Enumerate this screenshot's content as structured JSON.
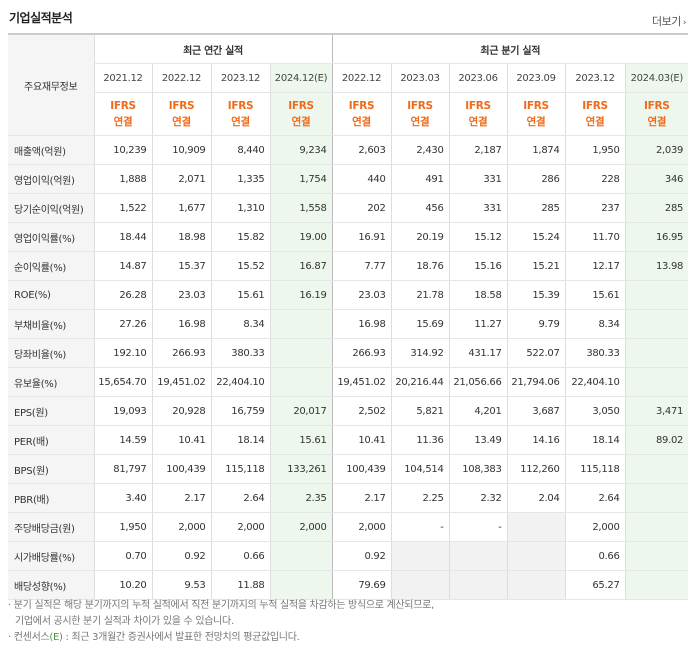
{
  "title": "기업실적분석",
  "more": "더보기",
  "stub_header": "주요재무정보",
  "annual_header": "최근 연간 실적",
  "quarter_header": "최근 분기 실적",
  "annual_periods": [
    "2021.12",
    "2022.12",
    "2023.12",
    "2024.12(E)"
  ],
  "quarter_periods": [
    "2022.12",
    "2023.03",
    "2023.06",
    "2023.09",
    "2023.12",
    "2024.03(E)"
  ],
  "ifrs": [
    "IFRS",
    "연결"
  ],
  "rows": [
    {
      "label": "매출액(억원)",
      "values": [
        "10,239",
        "10,909",
        "8,440",
        "9,234",
        "2,603",
        "2,430",
        "2,187",
        "1,874",
        "1,950",
        "2,039"
      ]
    },
    {
      "label": "영업이익(억원)",
      "values": [
        "1,888",
        "2,071",
        "1,335",
        "1,754",
        "440",
        "491",
        "331",
        "286",
        "228",
        "346"
      ]
    },
    {
      "label": "당기순이익(억원)",
      "values": [
        "1,522",
        "1,677",
        "1,310",
        "1,558",
        "202",
        "456",
        "331",
        "285",
        "237",
        "285"
      ]
    },
    {
      "label": "영업이익률(%)",
      "values": [
        "18.44",
        "18.98",
        "15.82",
        "19.00",
        "16.91",
        "20.19",
        "15.12",
        "15.24",
        "11.70",
        "16.95"
      ]
    },
    {
      "label": "순이익률(%)",
      "values": [
        "14.87",
        "15.37",
        "15.52",
        "16.87",
        "7.77",
        "18.76",
        "15.16",
        "15.21",
        "12.17",
        "13.98"
      ]
    },
    {
      "label": "ROE(%)",
      "values": [
        "26.28",
        "23.03",
        "15.61",
        "16.19",
        "23.03",
        "21.78",
        "18.58",
        "15.39",
        "15.61",
        ""
      ]
    },
    {
      "label": "부채비율(%)",
      "values": [
        "27.26",
        "16.98",
        "8.34",
        "",
        "16.98",
        "15.69",
        "11.27",
        "9.79",
        "8.34",
        ""
      ]
    },
    {
      "label": "당좌비율(%)",
      "values": [
        "192.10",
        "266.93",
        "380.33",
        "",
        "266.93",
        "314.92",
        "431.17",
        "522.07",
        "380.33",
        ""
      ]
    },
    {
      "label": "유보율(%)",
      "values": [
        "15,654.70",
        "19,451.02",
        "22,404.10",
        "",
        "19,451.02",
        "20,216.44",
        "21,056.66",
        "21,794.06",
        "22,404.10",
        ""
      ]
    },
    {
      "label": "EPS(원)",
      "values": [
        "19,093",
        "20,928",
        "16,759",
        "20,017",
        "2,502",
        "5,821",
        "4,201",
        "3,687",
        "3,050",
        "3,471"
      ]
    },
    {
      "label": "PER(배)",
      "values": [
        "14.59",
        "10.41",
        "18.14",
        "15.61",
        "10.41",
        "11.36",
        "13.49",
        "14.16",
        "18.14",
        "89.02"
      ]
    },
    {
      "label": "BPS(원)",
      "values": [
        "81,797",
        "100,439",
        "115,118",
        "133,261",
        "100,439",
        "104,514",
        "108,383",
        "112,260",
        "115,118",
        ""
      ]
    },
    {
      "label": "PBR(배)",
      "values": [
        "3.40",
        "2.17",
        "2.64",
        "2.35",
        "2.17",
        "2.25",
        "2.32",
        "2.04",
        "2.64",
        ""
      ]
    },
    {
      "label": "주당배당금(원)",
      "values": [
        "1,950",
        "2,000",
        "2,000",
        "2,000",
        "2,000",
        "-",
        "-",
        "",
        "2,000",
        ""
      ]
    },
    {
      "label": "시가배당률(%)",
      "values": [
        "0.70",
        "0.92",
        "0.66",
        "",
        "0.92",
        "",
        "",
        "",
        "0.66",
        ""
      ]
    },
    {
      "label": "배당성향(%)",
      "values": [
        "10.20",
        "9.53",
        "11.88",
        "",
        "79.69",
        "",
        "",
        "",
        "65.27",
        ""
      ]
    }
  ],
  "notes": [
    "분기 실적은 해당 분기까지의 누적 실적에서 직전 분기까지의 누적 실적을 차감하는 방식으로 계산되므로,",
    "기업에서 공시한 분기 실적과 차이가 있을 수 있습니다.",
    "컨센서스",
    "(E)",
    " : 최근 3개월간 증권사에서 발표한 전망치의 평균값입니다."
  ],
  "colors": {
    "accent": "#ee6b1a",
    "estimate_bg": "#eef7ee",
    "header_bg": "#f5f5f5"
  }
}
